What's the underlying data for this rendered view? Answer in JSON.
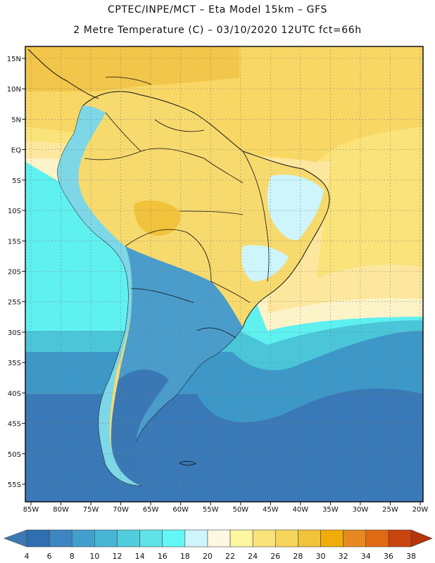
{
  "title_line1": "CPTEC/INPE/MCT –  Eta Model 15km – GFS",
  "title_line2": "2 Metre Temperature (C) – 03/10/2020 12UTC fct=66h",
  "lat_labels": [
    "15N",
    "10N",
    "5N",
    "EQ",
    "5S",
    "10S",
    "15S",
    "20S",
    "25S",
    "30S",
    "35S",
    "40S",
    "45S",
    "50S",
    "55S"
  ],
  "lon_labels": [
    "85W",
    "80W",
    "75W",
    "70W",
    "65W",
    "60W",
    "55W",
    "50W",
    "45W",
    "40W",
    "35W",
    "30W",
    "25W",
    "20W"
  ],
  "colorbar": {
    "labels": [
      "4",
      "6",
      "8",
      "10",
      "12",
      "14",
      "16",
      "18",
      "20",
      "22",
      "24",
      "26",
      "28",
      "30",
      "32",
      "34",
      "36",
      "38"
    ],
    "colors": [
      "#3c78b4",
      "#2f6fb0",
      "#3d86c1",
      "#429fcb",
      "#48b6d6",
      "#52cddd",
      "#5fe3e6",
      "#63f7f5",
      "#cdf5fb",
      "#fdf8e1",
      "#fdf7a2",
      "#f9e37a",
      "#f6d45c",
      "#f1c23b",
      "#f0ac09",
      "#e8891f",
      "#e06a12",
      "#c9450e",
      "#b6340b"
    ]
  },
  "map": {
    "frame": {
      "lon_min": -86,
      "lon_max": -19.5,
      "lat_min": -58,
      "lat_max": 16
    },
    "ocean_colors": {
      "north_warm": "#f8d765",
      "tropical": "#fde79e",
      "pale": "#fdf3c8",
      "cyan": "#5ff0f0",
      "mid": "#4bc6d9",
      "cool": "#3e98c7",
      "deep": "#3a79b7"
    },
    "land_colors": {
      "tropics": "#f7da6e",
      "warm_patch": "#f1c23b",
      "andes": "#7ed7e6",
      "southern_cone": "#4a9ccb",
      "patagonia": "#3a78b5"
    }
  }
}
